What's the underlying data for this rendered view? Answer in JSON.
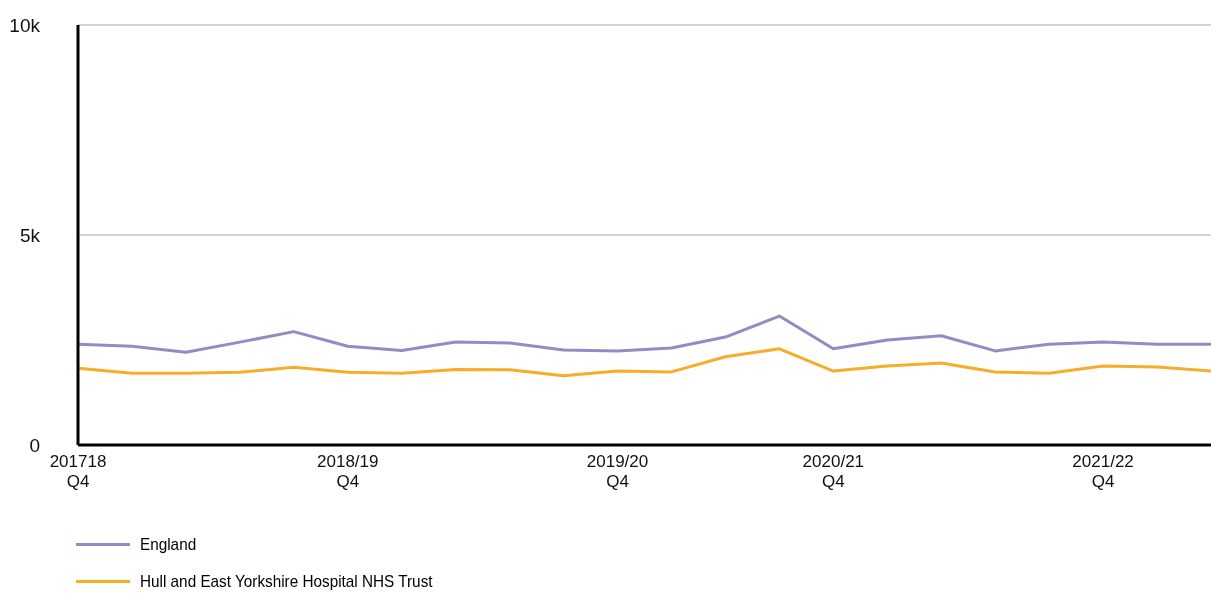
{
  "chart_data": {
    "type": "line",
    "categories": [
      "201718\nQ4",
      null,
      null,
      null,
      null,
      "2018/19\nQ4",
      null,
      null,
      null,
      null,
      "2019/20\nQ4",
      null,
      null,
      null,
      "2020/21\nQ4",
      null,
      null,
      null,
      null,
      "2021/22\nQ4",
      null,
      null
    ],
    "series": [
      {
        "name": "England",
        "color": "#8e8ec4",
        "values": [
          2400,
          2350,
          2210,
          2450,
          2700,
          2350,
          2250,
          2450,
          2430,
          2260,
          2240,
          2310,
          2570,
          3070,
          2290,
          2500,
          2600,
          2240,
          2400,
          2450,
          2400,
          2400
        ]
      },
      {
        "name": "Hull and East Yorkshire Hospital NHS Trust",
        "color": "#f7ac2a",
        "values": [
          1830,
          1710,
          1710,
          1730,
          1850,
          1730,
          1710,
          1800,
          1790,
          1650,
          1760,
          1740,
          2100,
          2290,
          1760,
          1880,
          1950,
          1740,
          1710,
          1880,
          1860,
          1760
        ]
      }
    ],
    "ylim": [
      0,
      10000
    ],
    "yticks": [
      0,
      {
        "value": 5000,
        "label": "5k"
      },
      {
        "value": 10000,
        "label": "10k"
      }
    ],
    "grid": "y",
    "legend": "bottom left",
    "marker": "none",
    "line_style": "solid"
  }
}
